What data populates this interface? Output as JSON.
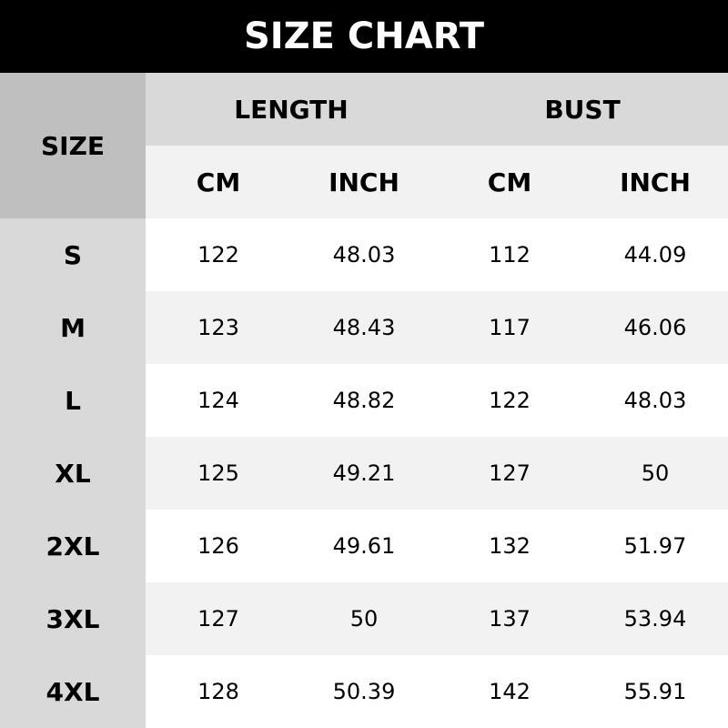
{
  "title": "SIZE CHART",
  "headers": {
    "size": "SIZE",
    "length": "LENGTH",
    "bust": "BUST",
    "units": [
      "CM",
      "INCH",
      "CM",
      "INCH"
    ]
  },
  "rows": [
    {
      "size": "S",
      "values": [
        "122",
        "48.03",
        "112",
        "44.09"
      ]
    },
    {
      "size": "M",
      "values": [
        "123",
        "48.43",
        "117",
        "46.06"
      ]
    },
    {
      "size": "L",
      "values": [
        "124",
        "48.82",
        "122",
        "48.03"
      ]
    },
    {
      "size": "XL",
      "values": [
        "125",
        "49.21",
        "127",
        "50"
      ]
    },
    {
      "size": "2XL",
      "values": [
        "126",
        "49.61",
        "132",
        "51.97"
      ]
    },
    {
      "size": "3XL",
      "values": [
        "127",
        "50",
        "137",
        "53.94"
      ]
    },
    {
      "size": "4XL",
      "values": [
        "128",
        "50.39",
        "142",
        "55.91"
      ]
    }
  ]
}
